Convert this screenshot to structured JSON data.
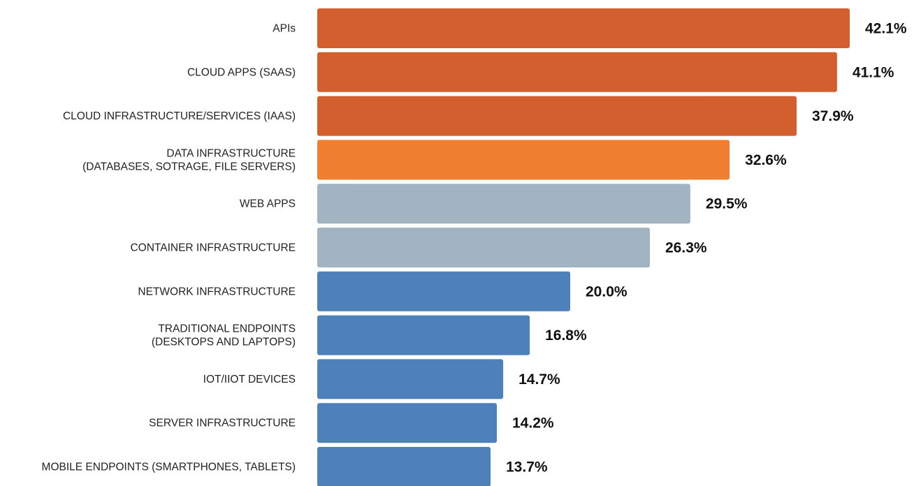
{
  "chart_data": {
    "type": "bar",
    "orientation": "horizontal",
    "xlim": [
      0,
      42.1
    ],
    "grid": false,
    "legend": "none",
    "categories": [
      [
        "APIs"
      ],
      [
        "CLOUD APPS (SAAS)"
      ],
      [
        "CLOUD INFRASTRUCTURE/SERVICES (IAAS)"
      ],
      [
        "DATA INFRASTRUCTURE",
        "(DATABASES, SOTRAGE, FILE SERVERS)"
      ],
      [
        "WEB APPS"
      ],
      [
        "CONTAINER INFRASTRUCTURE"
      ],
      [
        "NETWORK INFRASTRUCTURE"
      ],
      [
        "TRADITIONAL ENDPOINTS",
        "(DESKTOPS AND LAPTOPS)"
      ],
      [
        "IOT/IIOT DEVICES"
      ],
      [
        "SERVER INFRASTRUCTURE"
      ],
      [
        "MOBILE ENDPOINTS (SMARTPHONES, TABLETS)"
      ]
    ],
    "values": [
      42.1,
      41.1,
      37.9,
      32.6,
      29.5,
      26.3,
      20.0,
      16.8,
      14.7,
      14.2,
      13.7
    ],
    "value_labels": [
      "42.1%",
      "41.1%",
      "37.9%",
      "32.6%",
      "29.5%",
      "26.3%",
      "20.0%",
      "16.8%",
      "14.7%",
      "14.2%",
      "13.7%"
    ],
    "bar_colors": [
      "#d45f2e",
      "#d45f2e",
      "#d45f2e",
      "#f07f32",
      "#a2b3c1",
      "#a2b3c1",
      "#4e81b9",
      "#4e81b9",
      "#4e81b9",
      "#4e81b9",
      "#4e81b9"
    ]
  }
}
